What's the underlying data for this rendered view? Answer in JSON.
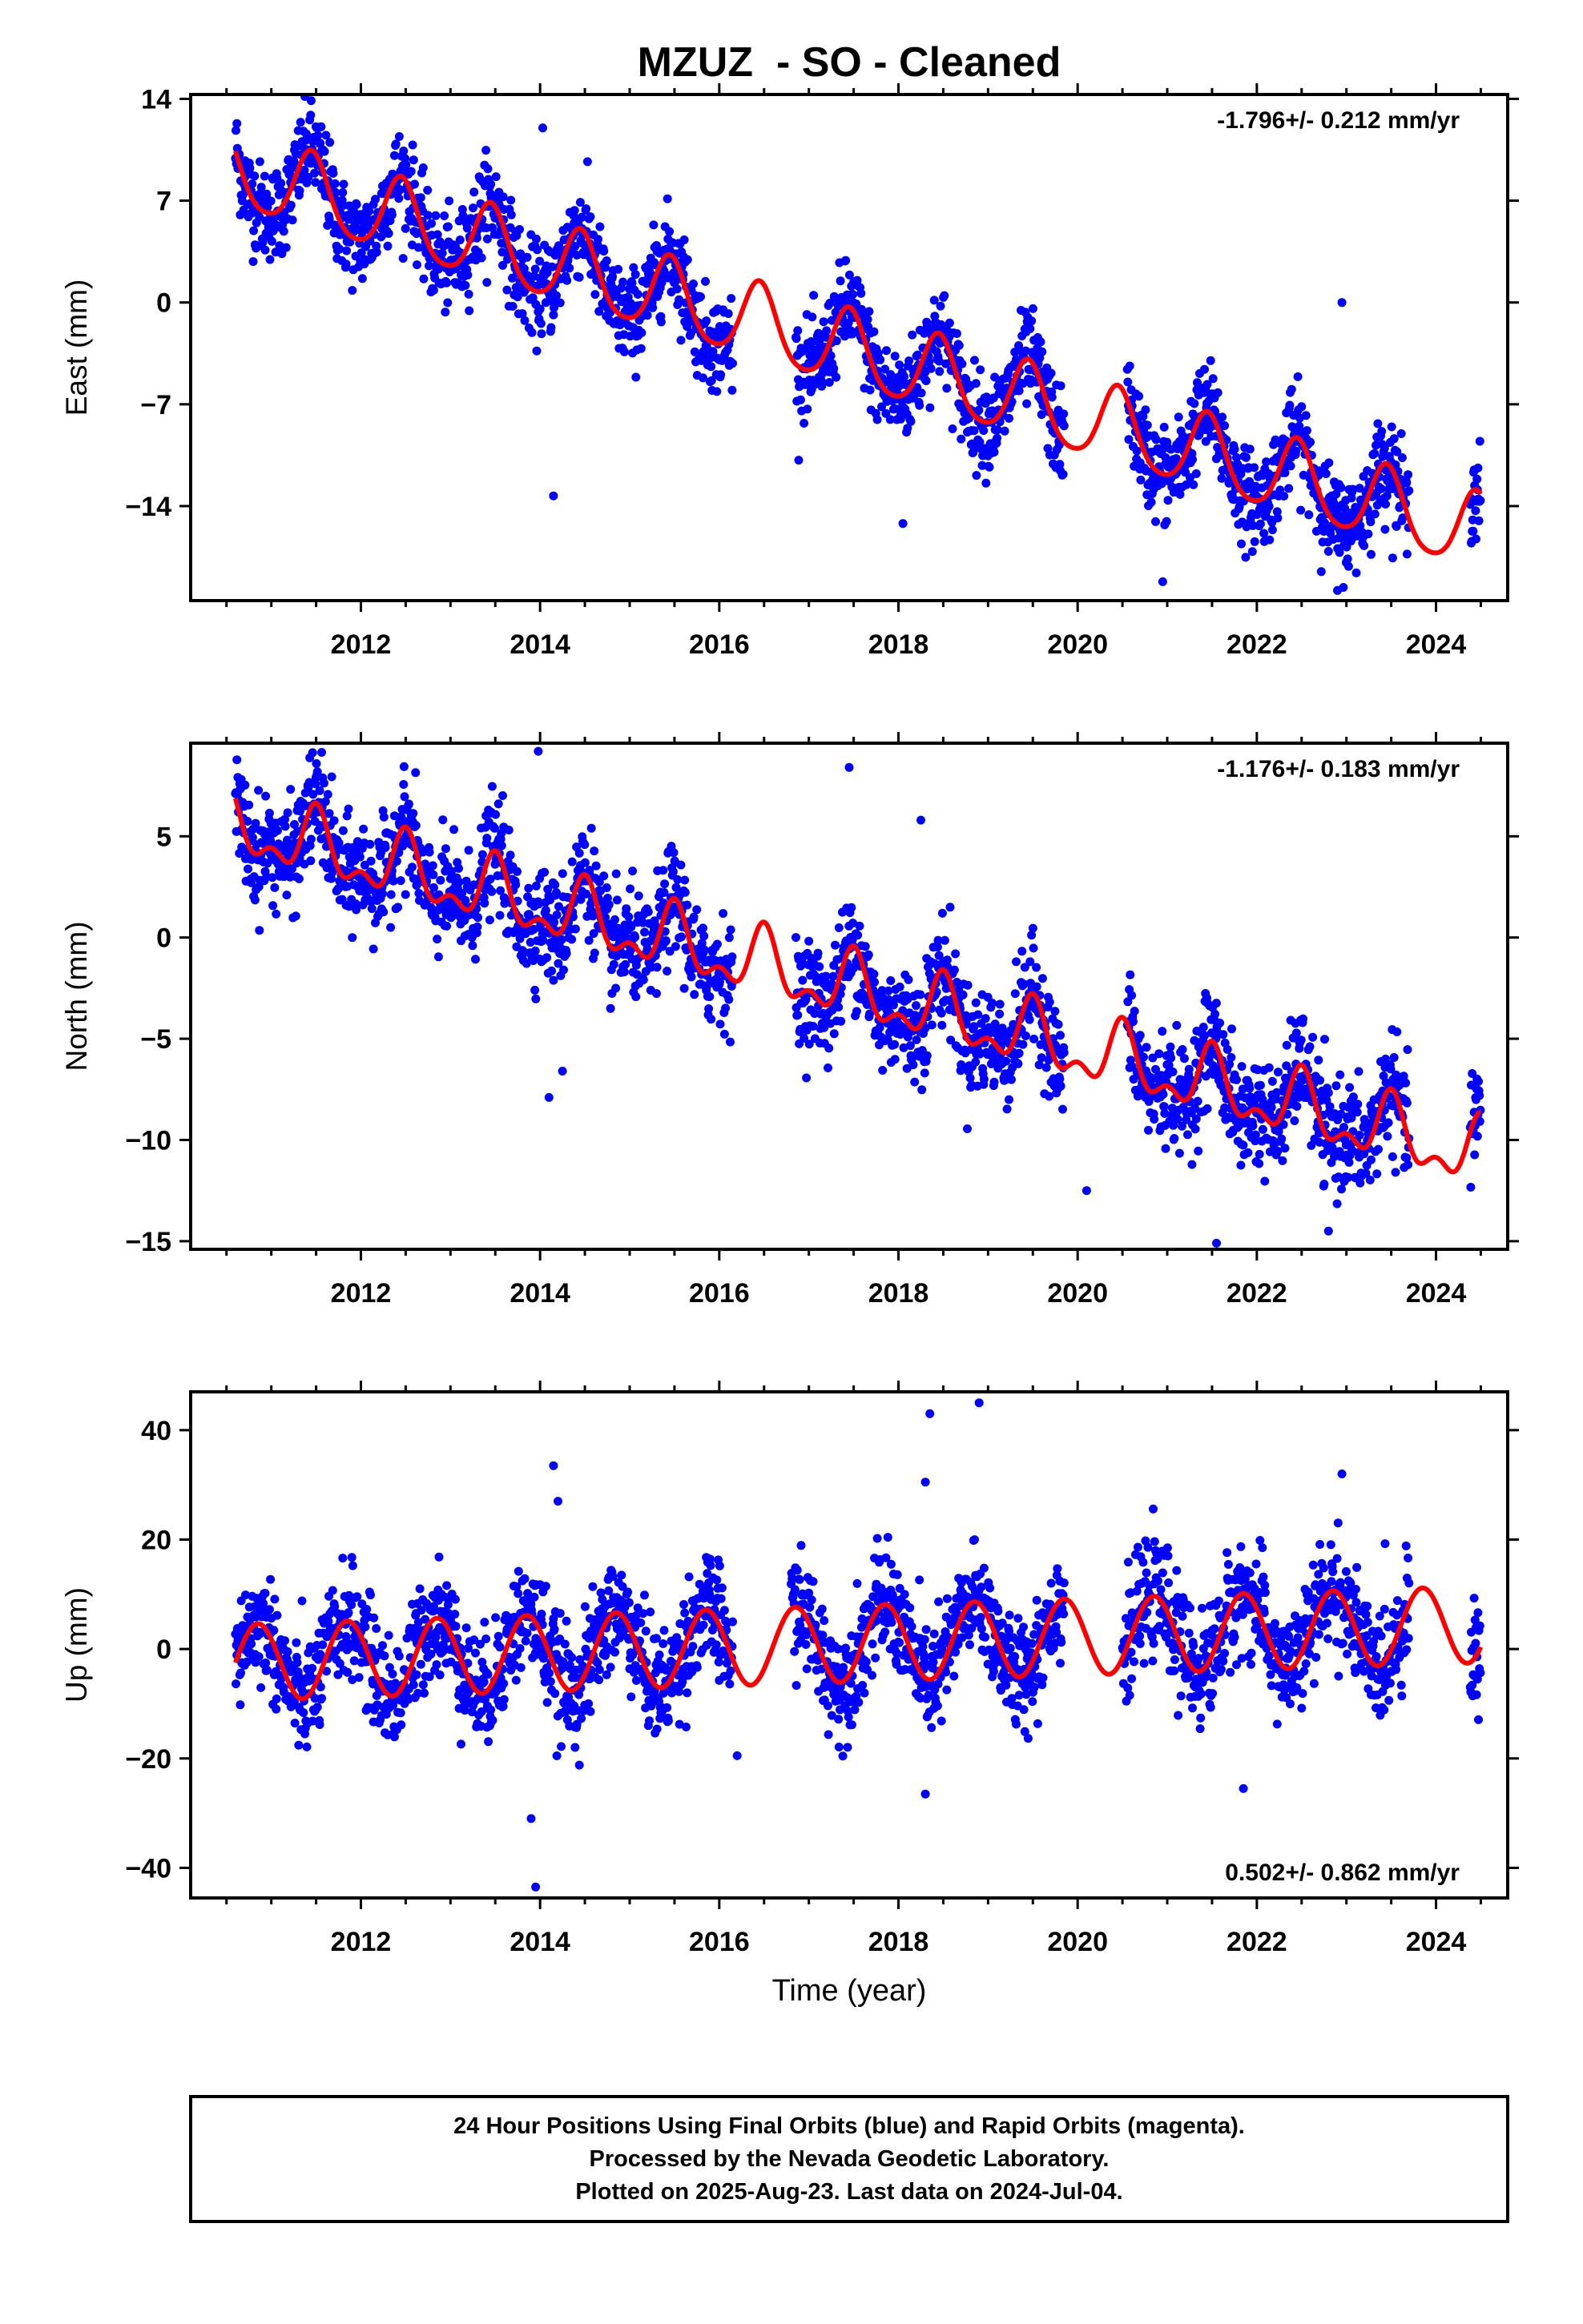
{
  "figure": {
    "title": "MZUZ  - SO - Cleaned",
    "footer": [
      "24 Hour Positions Using Final Orbits (blue) and Rapid Orbits (magenta).",
      "Processed by the Nevada Geodetic Laboratory.",
      "Plotted on 2025-Aug-23. Last data on 2024-Jul-04."
    ],
    "colors": {
      "points": "#0000ff",
      "model": "#ff0000",
      "frame": "#000000"
    }
  },
  "chart_data": [
    {
      "type": "scatter",
      "panel": "east",
      "ylabel": "East (mm)",
      "xlabel": "",
      "rate_label": "-1.796+/- 0.212 mm/yr",
      "rate_position": "top-right",
      "xlim": [
        2010.1,
        2024.8
      ],
      "ylim": [
        -20.5,
        14.3
      ],
      "yticks": [
        "14",
        "7",
        "0",
        "-7",
        "-14"
      ],
      "ytick_values": [
        14,
        7,
        0,
        -7,
        -14
      ],
      "xticks": [
        "2012",
        "2014",
        "2016",
        "2018",
        "2020",
        "2022",
        "2024"
      ],
      "xtick_values": [
        2012,
        2014,
        2016,
        2018,
        2020,
        2022,
        2024
      ],
      "data_start": 2010.6,
      "data_end": 2024.5,
      "gaps": [
        [
          2016.15,
          2016.85
        ],
        [
          2019.85,
          2020.55
        ],
        [
          2023.7,
          2024.38
        ]
      ],
      "model": {
        "slope_mm_per_yr": -1.796,
        "value_at_2010_6": 9.0,
        "annual_amp": 2.6,
        "annual_phase_year": 2011.45,
        "semiannual_amp": 0.4
      },
      "scatter_sd": 1.6,
      "outliers": [
        [
          2014.03,
          12.0
        ],
        [
          2014.15,
          -13.3
        ],
        [
          2018.05,
          -15.2
        ],
        [
          2020.95,
          -19.2
        ],
        [
          2022.9,
          -19.8
        ],
        [
          2022.95,
          0.0
        ]
      ],
      "grid": false,
      "legend": "none"
    },
    {
      "type": "scatter",
      "panel": "north",
      "ylabel": "North (mm)",
      "xlabel": "",
      "rate_label": "-1.176+/- 0.183 mm/yr",
      "rate_position": "top-right",
      "xlim": [
        2010.1,
        2024.8
      ],
      "ylim": [
        -15.4,
        9.6
      ],
      "yticks": [
        "5",
        "0",
        "-5",
        "-10",
        "-15"
      ],
      "ytick_values": [
        5,
        0,
        -5,
        -10,
        -15
      ],
      "xticks": [
        "2012",
        "2014",
        "2016",
        "2018",
        "2020",
        "2022",
        "2024"
      ],
      "xtick_values": [
        2012,
        2014,
        2016,
        2018,
        2020,
        2022,
        2024
      ],
      "data_start": 2010.6,
      "data_end": 2024.5,
      "gaps": [
        [
          2016.15,
          2016.85
        ],
        [
          2019.85,
          2020.55
        ],
        [
          2023.7,
          2024.38
        ]
      ],
      "model": {
        "slope_mm_per_yr": -1.176,
        "value_at_2010_6": 5.5,
        "annual_amp": 1.4,
        "annual_phase_year": 2011.5,
        "semiannual_amp": 0.8
      },
      "scatter_sd": 1.3,
      "outliers": [
        [
          2013.98,
          9.2
        ],
        [
          2014.1,
          -7.9
        ],
        [
          2014.25,
          -6.6
        ],
        [
          2017.45,
          8.4
        ],
        [
          2018.25,
          5.8
        ],
        [
          2020.1,
          -12.5
        ],
        [
          2021.55,
          -15.1
        ],
        [
          2022.8,
          -14.5
        ]
      ],
      "grid": false,
      "legend": "none"
    },
    {
      "type": "scatter",
      "panel": "up",
      "ylabel": "Up (mm)",
      "xlabel": "Time (year)",
      "rate_label": "0.502+/- 0.862 mm/yr",
      "rate_position": "bottom-right",
      "xlim": [
        2010.1,
        2024.8
      ],
      "ylim": [
        -45.5,
        47.0
      ],
      "yticks": [
        "40",
        "20",
        "0",
        "-20",
        "-40"
      ],
      "ytick_values": [
        40,
        20,
        0,
        -20,
        -40
      ],
      "xticks": [
        "2012",
        "2014",
        "2016",
        "2018",
        "2020",
        "2022",
        "2024"
      ],
      "xtick_values": [
        2012,
        2014,
        2016,
        2018,
        2020,
        2022,
        2024
      ],
      "data_start": 2010.6,
      "data_end": 2024.5,
      "gaps": [
        [
          2016.15,
          2016.8
        ],
        [
          2019.85,
          2020.5
        ],
        [
          2023.7,
          2024.38
        ]
      ],
      "model": {
        "slope_mm_per_yr": 0.502,
        "value_at_2010_6": -2.5,
        "annual_amp": 7.0,
        "annual_phase_year": 2010.85,
        "semiannual_amp": 0.0
      },
      "scatter_sd": 5.0,
      "outliers": [
        [
          2014.15,
          33.5
        ],
        [
          2014.2,
          27.0
        ],
        [
          2013.9,
          -31.0
        ],
        [
          2013.95,
          -43.5
        ],
        [
          2018.35,
          43.0
        ],
        [
          2018.9,
          45.0
        ],
        [
          2018.3,
          30.5
        ],
        [
          2022.95,
          32.0
        ],
        [
          2021.85,
          -25.5
        ],
        [
          2018.3,
          -26.5
        ],
        [
          2016.2,
          -19.5
        ]
      ],
      "grid": false,
      "legend": "none"
    }
  ]
}
